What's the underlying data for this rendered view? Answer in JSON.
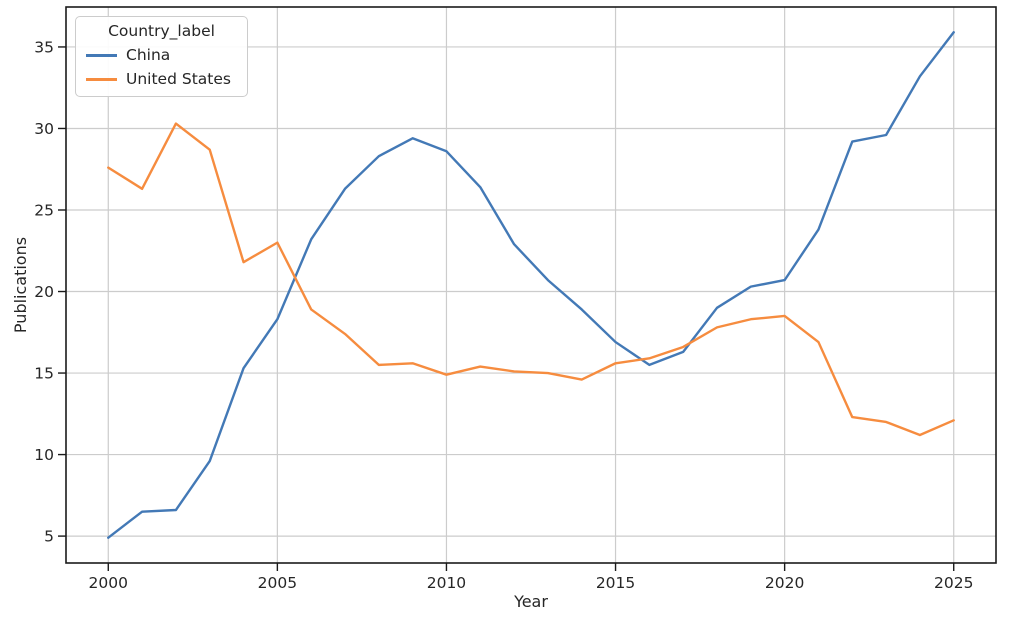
{
  "chart_data": {
    "type": "line",
    "title": "",
    "xlabel": "Year",
    "ylabel": "Publications",
    "grid": true,
    "legend": {
      "title": "Country_label",
      "position": "upper left"
    },
    "x": [
      2000,
      2001,
      2002,
      2003,
      2004,
      2005,
      2006,
      2007,
      2008,
      2009,
      2010,
      2011,
      2012,
      2013,
      2014,
      2015,
      2016,
      2017,
      2018,
      2019,
      2020,
      2021,
      2022,
      2023,
      2024,
      2025
    ],
    "series": [
      {
        "name": "China",
        "color": "#4379b6",
        "values": [
          4.9,
          6.5,
          6.6,
          9.6,
          15.3,
          18.3,
          23.2,
          26.3,
          28.3,
          29.4,
          28.6,
          26.4,
          22.9,
          20.7,
          18.9,
          16.9,
          15.5,
          16.3,
          19.0,
          20.3,
          20.7,
          23.8,
          29.2,
          29.6,
          33.2,
          35.9
        ]
      },
      {
        "name": "United States",
        "color": "#f68c3f",
        "values": [
          27.6,
          26.3,
          30.3,
          28.7,
          21.8,
          23.0,
          18.9,
          17.4,
          15.5,
          15.6,
          14.9,
          15.4,
          15.1,
          15.0,
          14.6,
          15.6,
          15.9,
          16.6,
          17.8,
          18.3,
          18.5,
          16.9,
          12.3,
          12.0,
          11.2,
          12.1
        ]
      }
    ],
    "xticks": [
      2000,
      2005,
      2010,
      2015,
      2020,
      2025
    ],
    "yticks": [
      5,
      10,
      15,
      20,
      25,
      30,
      35
    ],
    "xlim": [
      1998.75,
      2026.25
    ],
    "ylim": [
      3.35,
      37.45
    ]
  }
}
